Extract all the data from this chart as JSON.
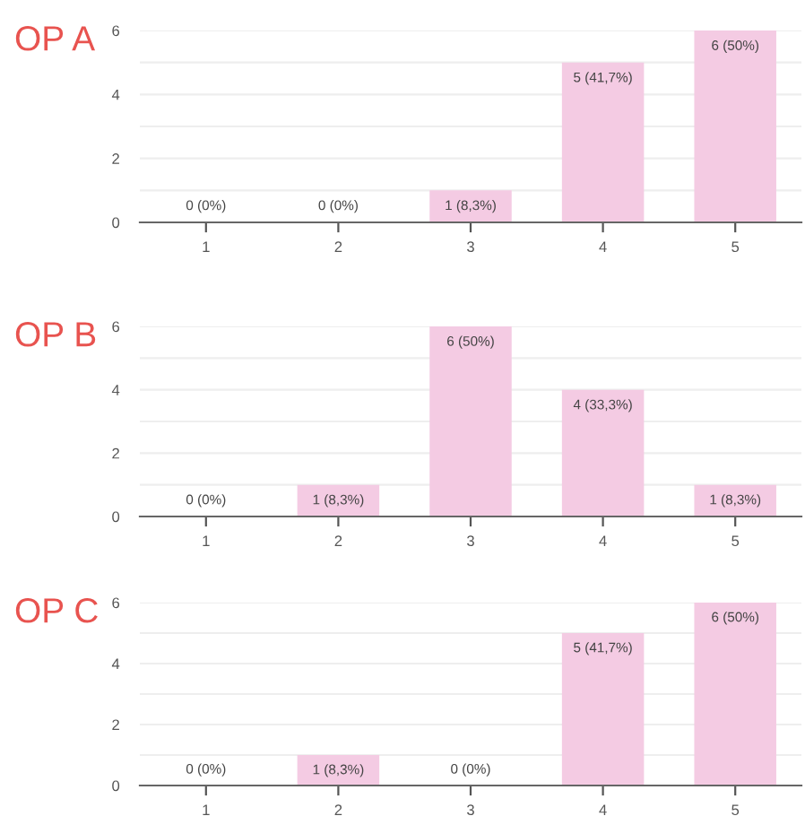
{
  "chart_data": [
    {
      "type": "bar",
      "title": "OP A",
      "categories": [
        "1",
        "2",
        "3",
        "4",
        "5"
      ],
      "values": [
        0,
        0,
        1,
        5,
        6
      ],
      "value_labels": [
        "0 (0%)",
        "0 (0%)",
        "1 (8,3%)",
        "5 (41,7%)",
        "6 (50%)"
      ],
      "color": "#f4cbe3",
      "ylim": [
        0,
        6
      ],
      "yticks": [
        0,
        {
          "value": 1,
          "label": null
        },
        2,
        {
          "value": 3,
          "label": null
        },
        4,
        {
          "value": 5,
          "label": null
        },
        6
      ],
      "grid": "y"
    },
    {
      "type": "bar",
      "title": "OP B",
      "categories": [
        "1",
        "2",
        "3",
        "4",
        "5"
      ],
      "values": [
        0,
        1,
        6,
        4,
        1
      ],
      "value_labels": [
        "0 (0%)",
        "1 (8,3%)",
        "6 (50%)",
        "4 (33,3%)",
        "1 (8,3%)"
      ],
      "color": "#f4cbe3",
      "ylim": [
        0,
        6
      ],
      "yticks": [
        0,
        {
          "value": 1,
          "label": null
        },
        2,
        {
          "value": 3,
          "label": null
        },
        4,
        {
          "value": 5,
          "label": null
        },
        6
      ],
      "grid": "y"
    },
    {
      "type": "bar",
      "title": "OP C",
      "categories": [
        "1",
        "2",
        "3",
        "4",
        "5"
      ],
      "values": [
        0,
        1,
        0,
        5,
        6
      ],
      "value_labels": [
        "0 (0%)",
        "1 (8,3%)",
        "0 (0%)",
        "5 (41,7%)",
        "6 (50%)"
      ],
      "color": "#f4cbe3",
      "ylim": [
        0,
        6
      ],
      "yticks": [
        0,
        {
          "value": 1,
          "label": null
        },
        2,
        {
          "value": 3,
          "label": null
        },
        4,
        {
          "value": 5,
          "label": null
        },
        6
      ],
      "grid": "y"
    }
  ]
}
